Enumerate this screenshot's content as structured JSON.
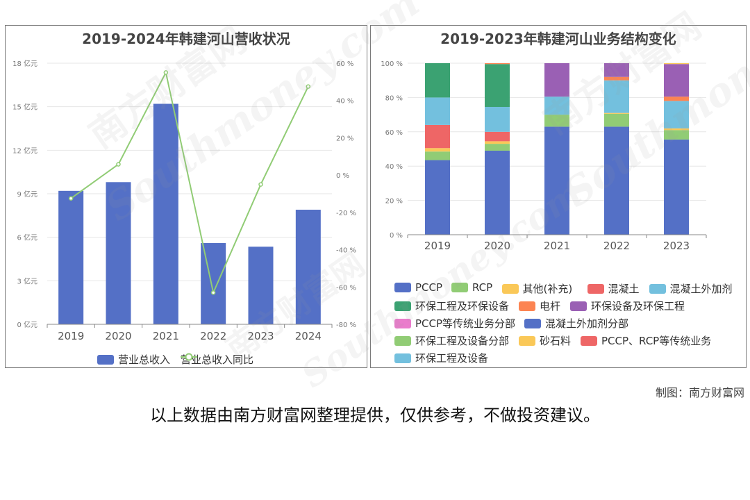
{
  "left_chart": {
    "title": "2019-2024年韩建河山营收状况",
    "legend": [
      {
        "label": "营业总收入",
        "color": "#5470c6",
        "kind": "bar"
      },
      {
        "label": "营业总收入同比",
        "color": "#91cc75",
        "kind": "line"
      }
    ]
  },
  "right_chart": {
    "title": "2019-2023年韩建河山业务结构变化",
    "legend": [
      {
        "label": "PCCP",
        "color": "#5470c6"
      },
      {
        "label": "RCP",
        "color": "#91cc75"
      },
      {
        "label": "其他(补充)",
        "color": "#fac858"
      },
      {
        "label": "混凝土",
        "color": "#ee6666"
      },
      {
        "label": "混凝土外加剂",
        "color": "#73c0de"
      },
      {
        "label": "环保工程及环保设备",
        "color": "#3ba272"
      },
      {
        "label": "电杆",
        "color": "#fc8452"
      },
      {
        "label": "环保设备及环保工程",
        "color": "#9a60b4"
      },
      {
        "label": "PCCP等传统业务分部",
        "color": "#ea7ccc"
      },
      {
        "label": "混凝土外加剂分部",
        "color": "#5470c6"
      },
      {
        "label": "环保工程及设备分部",
        "color": "#91cc75"
      },
      {
        "label": "砂石料",
        "color": "#fac858"
      },
      {
        "label": "PCCP、RCP等传统业务",
        "color": "#ee6666"
      },
      {
        "label": "环保工程及设备",
        "color": "#73c0de"
      }
    ]
  },
  "credit": "制图：南方财富网",
  "disclaimer": "以上数据由南方财富网整理提供，仅供参考，不做投资建议。",
  "watermark": {
    "cn": "南方财富网",
    "en": "Southmoney.com"
  },
  "chart_data": [
    {
      "type": "bar",
      "title": "2019-2024年韩建河山营收状况",
      "categories": [
        "2019",
        "2020",
        "2021",
        "2022",
        "2023",
        "2024"
      ],
      "y_ticks": [
        "0 亿元",
        "3 亿元",
        "6 亿元",
        "9 亿元",
        "12 亿元",
        "15 亿元",
        "18 亿元"
      ],
      "y2_ticks": [
        "-80 %",
        "-60 %",
        "-40 %",
        "-20 %",
        "0 %",
        "20 %",
        "40 %",
        "60 %"
      ],
      "ylim": [
        0,
        18
      ],
      "y2lim": [
        -80,
        60
      ],
      "series": [
        {
          "name": "营业总收入",
          "type": "bar",
          "axis": "left",
          "color": "#5470c6",
          "values": [
            9.2,
            9.8,
            15.2,
            5.6,
            5.35,
            7.9
          ]
        },
        {
          "name": "营业总收入同比",
          "type": "line",
          "axis": "right",
          "color": "#91cc75",
          "values": [
            -12.5,
            5.8,
            55.0,
            -63.0,
            -5.0,
            47.5
          ]
        }
      ],
      "grid": true
    },
    {
      "type": "bar",
      "stacked": true,
      "title": "2019-2023年韩建河山业务结构变化",
      "categories": [
        "2019",
        "2020",
        "2021",
        "2022",
        "2023"
      ],
      "y_ticks": [
        "0 %",
        "20 %",
        "40 %",
        "60 %",
        "80 %",
        "100 %"
      ],
      "ylim": [
        0,
        100
      ],
      "series": [
        {
          "name": "PCCP",
          "color": "#5470c6",
          "values": [
            43.5,
            49,
            63,
            63,
            55.5
          ]
        },
        {
          "name": "RCP",
          "color": "#91cc75",
          "values": [
            5,
            4,
            7,
            7.5,
            5.5
          ]
        },
        {
          "name": "其他(补充)",
          "color": "#fac858",
          "values": [
            2,
            1.5,
            0,
            0.5,
            1
          ]
        },
        {
          "name": "混凝土",
          "color": "#ee6666",
          "values": [
            13.5,
            5.5,
            0,
            0,
            0
          ]
        },
        {
          "name": "混凝土外加剂",
          "color": "#73c0de",
          "values": [
            16,
            14.5,
            10.5,
            19,
            16
          ]
        },
        {
          "name": "环保工程及环保设备",
          "color": "#3ba272",
          "values": [
            20,
            25,
            0,
            0,
            0
          ]
        },
        {
          "name": "电杆",
          "color": "#fc8452",
          "values": [
            0,
            0.5,
            0,
            2,
            2.5
          ]
        },
        {
          "name": "环保设备及环保工程",
          "color": "#9a60b4",
          "values": [
            0,
            0,
            19.5,
            8,
            19
          ]
        },
        {
          "name": "砂石料",
          "color": "#fac858",
          "values": [
            0,
            0,
            0,
            0,
            0.5
          ]
        }
      ],
      "grid": true
    }
  ]
}
